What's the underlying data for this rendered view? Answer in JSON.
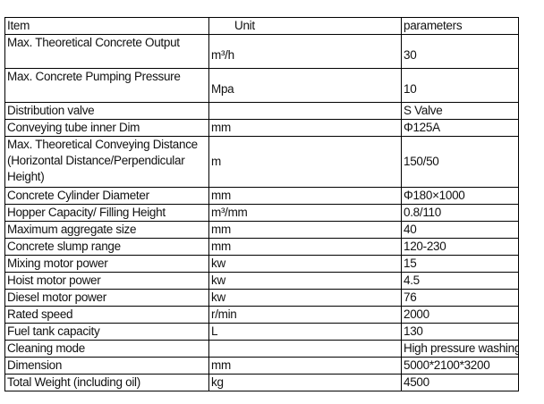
{
  "table": {
    "headers": {
      "item": "Item",
      "unit": "Unit",
      "parameters": "parameters"
    },
    "rows": [
      {
        "item": "Max. Theoretical Concrete Output",
        "unit": "m³/h",
        "value": "30"
      },
      {
        "item": "Max. Concrete Pumping Pressure",
        "unit": "Mpa",
        "value": "10"
      },
      {
        "item": "Distribution valve",
        "unit": "",
        "value": "S Valve"
      },
      {
        "item": "Conveying tube inner Dim",
        "unit": "mm",
        "value": "Φ125A"
      },
      {
        "item": "Max. Theoretical Conveying Distance (Horizontal Distance/Perpendicular Height)",
        "unit": "m",
        "value": "150/50"
      },
      {
        "item": "Concrete Cylinder Diameter",
        "unit": "mm",
        "value": "Φ180×1000"
      },
      {
        "item": "Hopper Capacity/ Filling Height",
        "unit": "m³/mm",
        "value": "0.8/110"
      },
      {
        "item": "Maximum aggregate size",
        "unit": "mm",
        "value": "40"
      },
      {
        "item": "Concrete slump range",
        "unit": "mm",
        "value": "120-230"
      },
      {
        "item": "Mixing motor power",
        "unit": "kw",
        "value": "15"
      },
      {
        "item": "Hoist motor power",
        "unit": "kw",
        "value": "4.5"
      },
      {
        "item": "Diesel motor power",
        "unit": "kw",
        "value": "76"
      },
      {
        "item": "Rated speed",
        "unit": "r/min",
        "value": "2000"
      },
      {
        "item": "Fuel tank capacity",
        "unit": "L",
        "value": "130"
      },
      {
        "item": "Cleaning mode",
        "unit": "",
        "value": "High pressure washing"
      },
      {
        "item": "Dimension",
        "unit": "mm",
        "value": "5000*2100*3200"
      },
      {
        "item": "Total Weight (including oil)",
        "unit": "kg",
        "value": "4500"
      }
    ]
  }
}
